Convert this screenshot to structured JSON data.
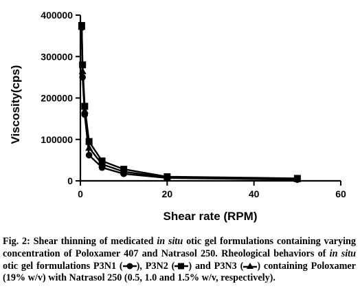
{
  "chart_data": {
    "type": "line",
    "title": "",
    "xlabel": "Shear  rate (RPM)",
    "ylabel": "Viscosity(cps)",
    "xlim": [
      0,
      60
    ],
    "ylim": [
      0,
      400000
    ],
    "xticks": [
      "0",
      "20",
      "40",
      "60"
    ],
    "yticks": [
      "0",
      "100000",
      "200000",
      "300000",
      "400000"
    ],
    "grid": false,
    "legend": "none",
    "series": [
      {
        "marker": "circle",
        "x": [
          0.3,
          0.5,
          1,
          2,
          5,
          10,
          20,
          50
        ],
        "y": [
          370000,
          250000,
          160000,
          62000,
          32000,
          17000,
          7000,
          3000
        ]
      },
      {
        "marker": "square",
        "x": [
          0.3,
          0.5,
          1,
          2,
          5,
          10,
          20,
          50
        ],
        "y": [
          375000,
          280000,
          180000,
          95000,
          48000,
          28000,
          10000,
          6000
        ]
      },
      {
        "marker": "triangle",
        "x": [
          0.3,
          0.5,
          1,
          2,
          5,
          10,
          20,
          50
        ],
        "y": [
          372000,
          265000,
          170000,
          80000,
          40000,
          22000,
          8000,
          4500
        ]
      }
    ]
  },
  "caption": {
    "lead": "Fig. 2: Shear thinning of medicated",
    "in_situ": "in situ",
    "p1": "otic gel formulations containing varying concentration of Poloxamer 407 and Natrasol 250. Rheological behaviors of",
    "p2": "otic gel formulations P3N1 (",
    "p3": "), P3N2 (",
    "p4": ") and P3N3 (",
    "p5": ") containing Poloxamer (19% w/v) with Natrasol 250 (0.5, 1.0 and 1.5% w/v, respectively)."
  }
}
